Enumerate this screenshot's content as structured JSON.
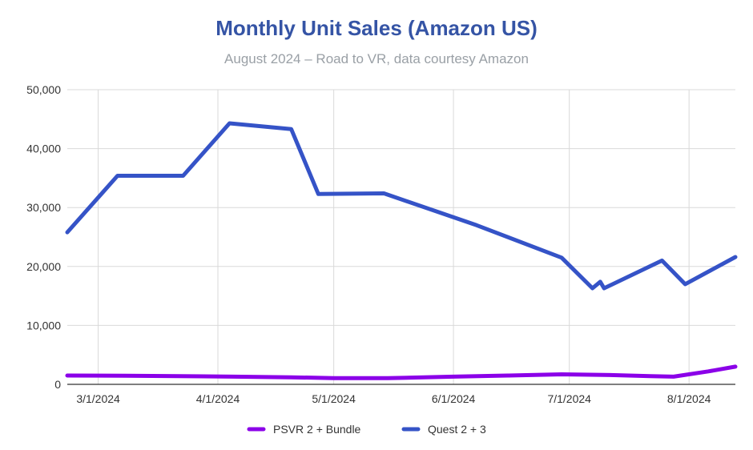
{
  "chart_data": {
    "type": "line",
    "title": "Monthly Unit Sales (Amazon US)",
    "subtitle": "August 2024 – Road to VR, data courtesy Amazon",
    "xlabel": "",
    "ylabel": "",
    "x_range": [
      "2024-02-22",
      "2024-08-13"
    ],
    "ylim": [
      0,
      50000
    ],
    "y_ticks": [
      0,
      10000,
      20000,
      30000,
      40000,
      50000
    ],
    "y_tick_labels": [
      "0",
      "10,000",
      "20,000",
      "30,000",
      "40,000",
      "50,000"
    ],
    "x_ticks": [
      "2024-03-01",
      "2024-04-01",
      "2024-05-01",
      "2024-06-01",
      "2024-07-01",
      "2024-08-01"
    ],
    "x_tick_labels": [
      "3/1/2024",
      "4/1/2024",
      "5/1/2024",
      "6/1/2024",
      "7/1/2024",
      "8/1/2024"
    ],
    "grid": true,
    "legend_position": "bottom",
    "series": [
      {
        "name": "PSVR 2 + Bundle",
        "color": "#8b00e8",
        "points": [
          [
            "2024-02-22",
            1500
          ],
          [
            "2024-03-08",
            1450
          ],
          [
            "2024-03-22",
            1400
          ],
          [
            "2024-04-05",
            1300
          ],
          [
            "2024-04-20",
            1200
          ],
          [
            "2024-05-01",
            1050
          ],
          [
            "2024-05-15",
            1050
          ],
          [
            "2024-06-01",
            1300
          ],
          [
            "2024-06-15",
            1500
          ],
          [
            "2024-06-29",
            1700
          ],
          [
            "2024-07-10",
            1600
          ],
          [
            "2024-07-22",
            1400
          ],
          [
            "2024-07-28",
            1300
          ],
          [
            "2024-08-06",
            2200
          ],
          [
            "2024-08-13",
            3000
          ]
        ]
      },
      {
        "name": "Quest 2 + 3",
        "color": "#3553c7",
        "points": [
          [
            "2024-02-22",
            25800
          ],
          [
            "2024-03-06",
            35400
          ],
          [
            "2024-03-23",
            35400
          ],
          [
            "2024-04-04",
            44300
          ],
          [
            "2024-04-20",
            43300
          ],
          [
            "2024-04-27",
            32300
          ],
          [
            "2024-05-14",
            32400
          ],
          [
            "2024-06-07",
            27000
          ],
          [
            "2024-06-29",
            21500
          ],
          [
            "2024-07-07",
            16300
          ],
          [
            "2024-07-09",
            17400
          ],
          [
            "2024-07-10",
            16300
          ],
          [
            "2024-07-25",
            21000
          ],
          [
            "2024-07-31",
            17000
          ],
          [
            "2024-08-13",
            21600
          ]
        ]
      }
    ]
  }
}
